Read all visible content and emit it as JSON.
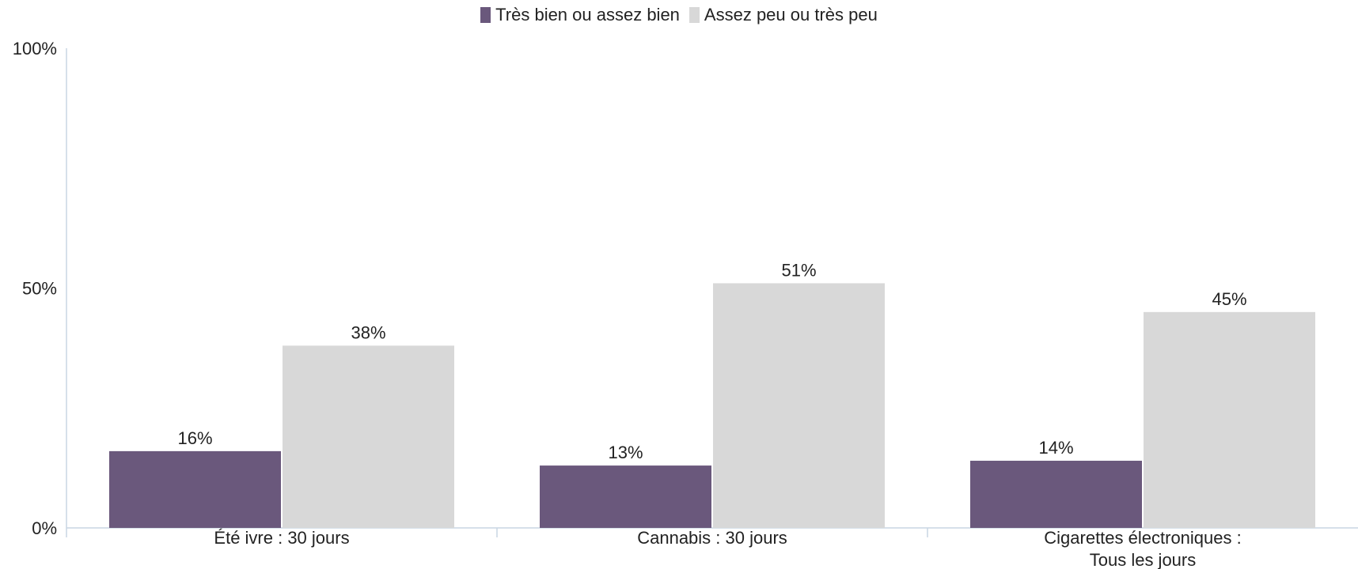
{
  "chart_data": {
    "type": "bar",
    "categories": [
      [
        "Été ivre : 30 jours"
      ],
      [
        "Cannabis : 30 jours"
      ],
      [
        "Cigarettes électroniques :",
        "Tous les jours"
      ]
    ],
    "series": [
      {
        "name": "Très bien ou assez bien",
        "color": "#6a587c",
        "values": [
          16,
          13,
          14
        ],
        "labels": [
          "16%",
          "13%",
          "14%"
        ]
      },
      {
        "name": "Assez peu ou très peu",
        "color": "#d8d8d8",
        "values": [
          38,
          51,
          45
        ],
        "labels": [
          "38%",
          "51%",
          "45%"
        ]
      }
    ],
    "ylim": [
      0,
      100
    ],
    "yticks": [
      0,
      50,
      100
    ],
    "ytick_labels": [
      "0%",
      "50%",
      "100%"
    ],
    "grid": false,
    "legend_position": "top-center",
    "axis_color": "#c9d6e3"
  }
}
